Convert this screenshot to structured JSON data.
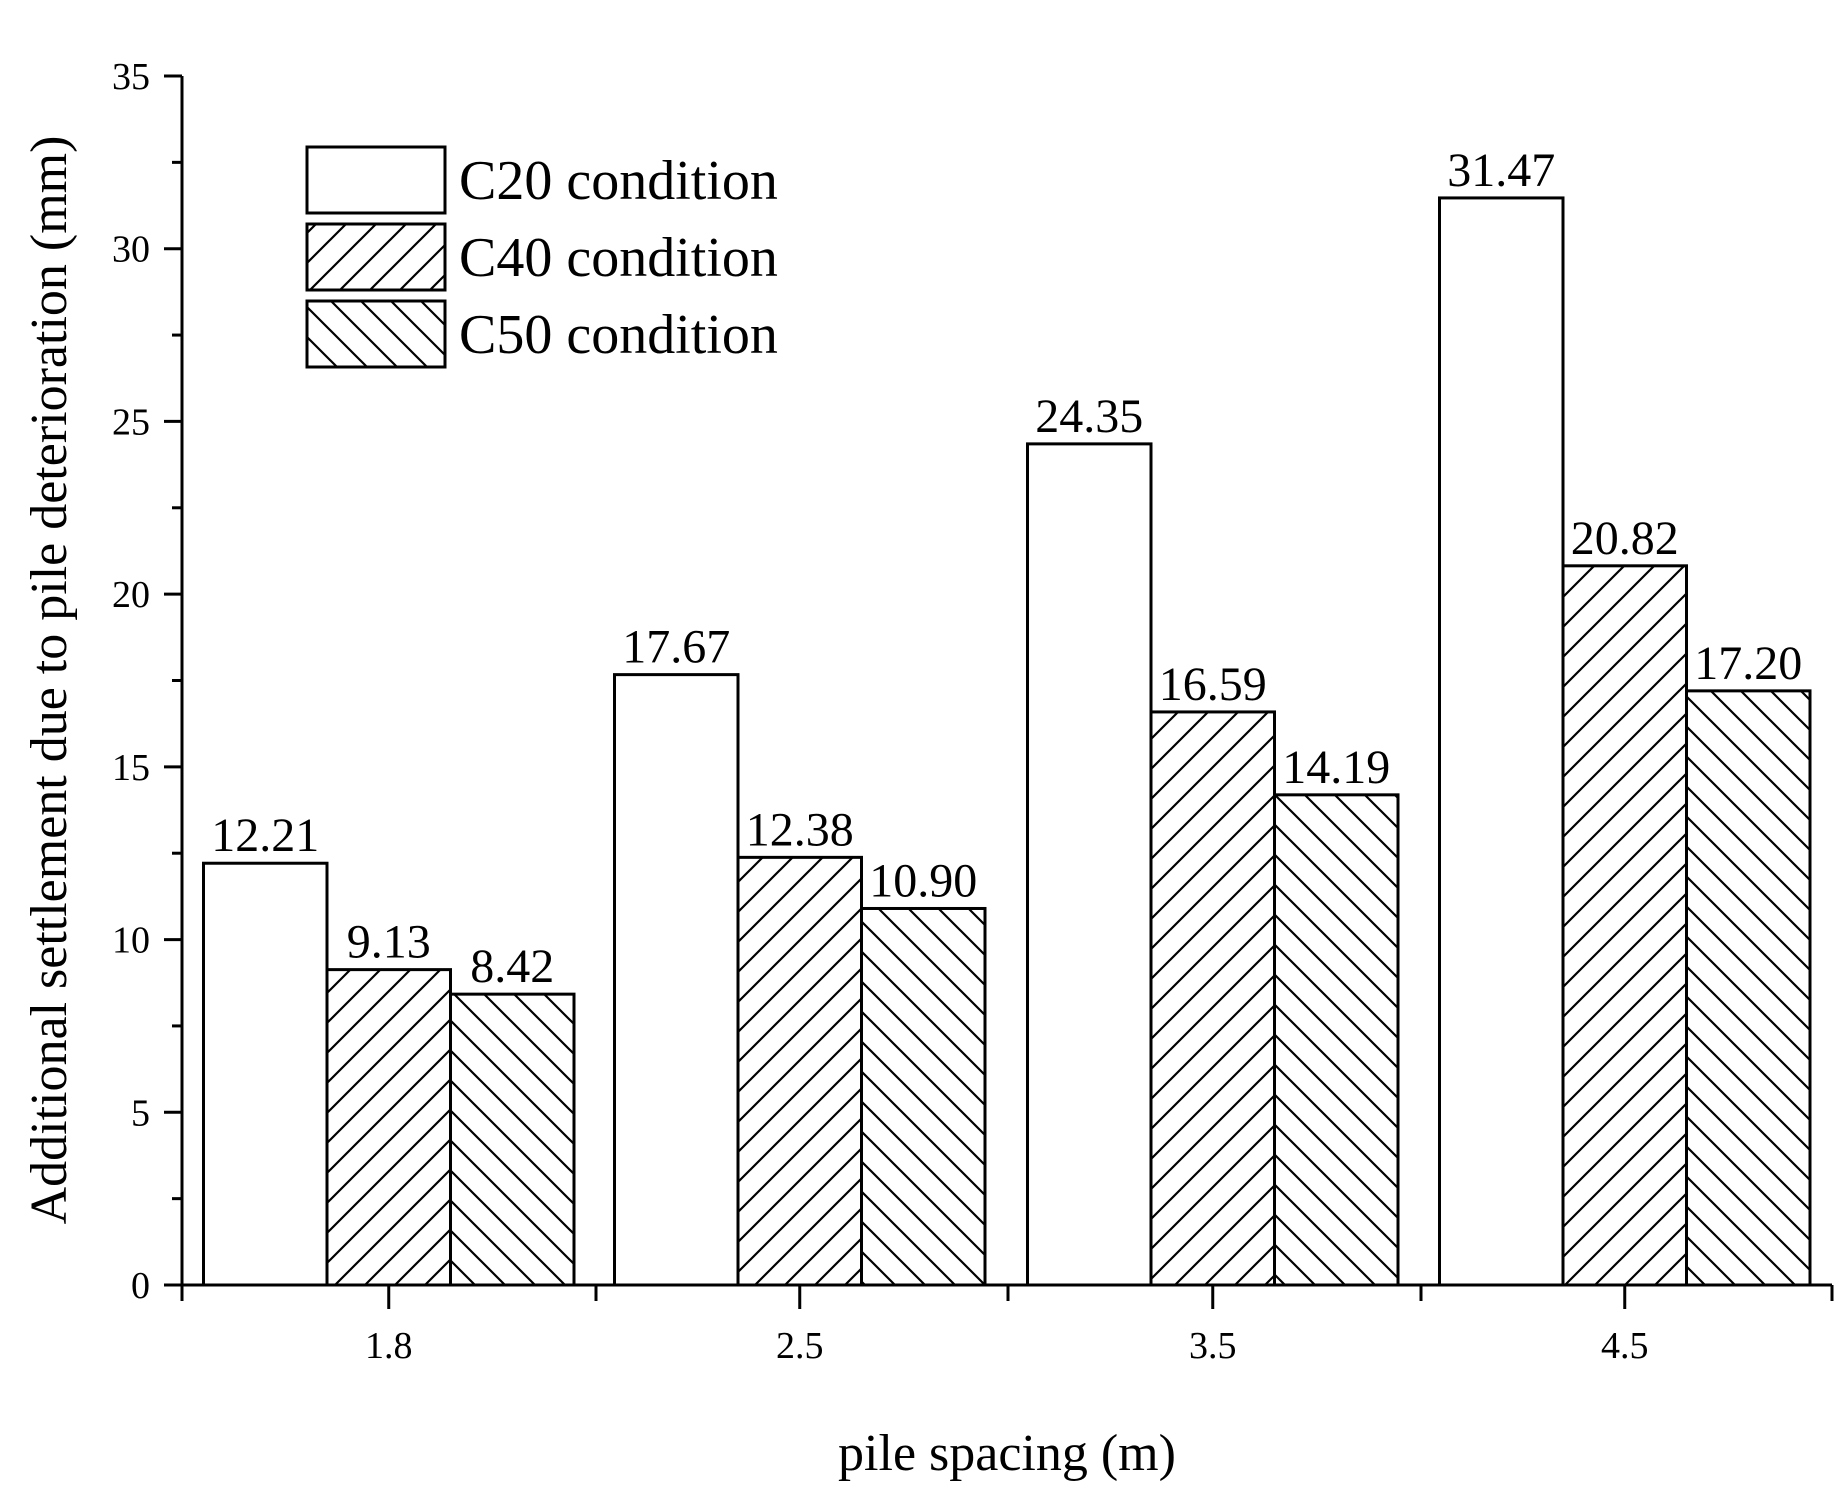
{
  "chart_data": {
    "type": "bar",
    "categories": [
      "1.8",
      "2.5",
      "3.5",
      "4.5"
    ],
    "series": [
      {
        "name": "C20 condition",
        "pattern": "none",
        "values": [
          12.21,
          17.67,
          24.35,
          31.47
        ],
        "labels": [
          "12.21",
          "17.67",
          "24.35",
          "31.47"
        ]
      },
      {
        "name": "C40 condition",
        "pattern": "forward-hatch",
        "values": [
          9.13,
          12.38,
          16.59,
          20.82
        ],
        "labels": [
          "9.13",
          "12.38",
          "16.59",
          "20.82"
        ]
      },
      {
        "name": "C50 condition",
        "pattern": "back-hatch",
        "values": [
          8.42,
          10.9,
          14.19,
          17.2
        ],
        "labels": [
          "8.42",
          "10.90",
          "14.19",
          "17.20"
        ]
      }
    ],
    "xlabel": "pile spacing (m)",
    "ylabel": "Additional settlement due to pile deterioration (mm)",
    "ylim": [
      0,
      35
    ],
    "yticks": [
      0,
      5,
      10,
      15,
      20,
      25,
      30,
      35
    ],
    "ytick_labels": [
      "0",
      "5",
      "10",
      "15",
      "20",
      "25",
      "30",
      "35"
    ],
    "legend_position": "top-left",
    "grid": false,
    "colors": {
      "stroke": "#000000",
      "fill": "#ffffff"
    }
  }
}
